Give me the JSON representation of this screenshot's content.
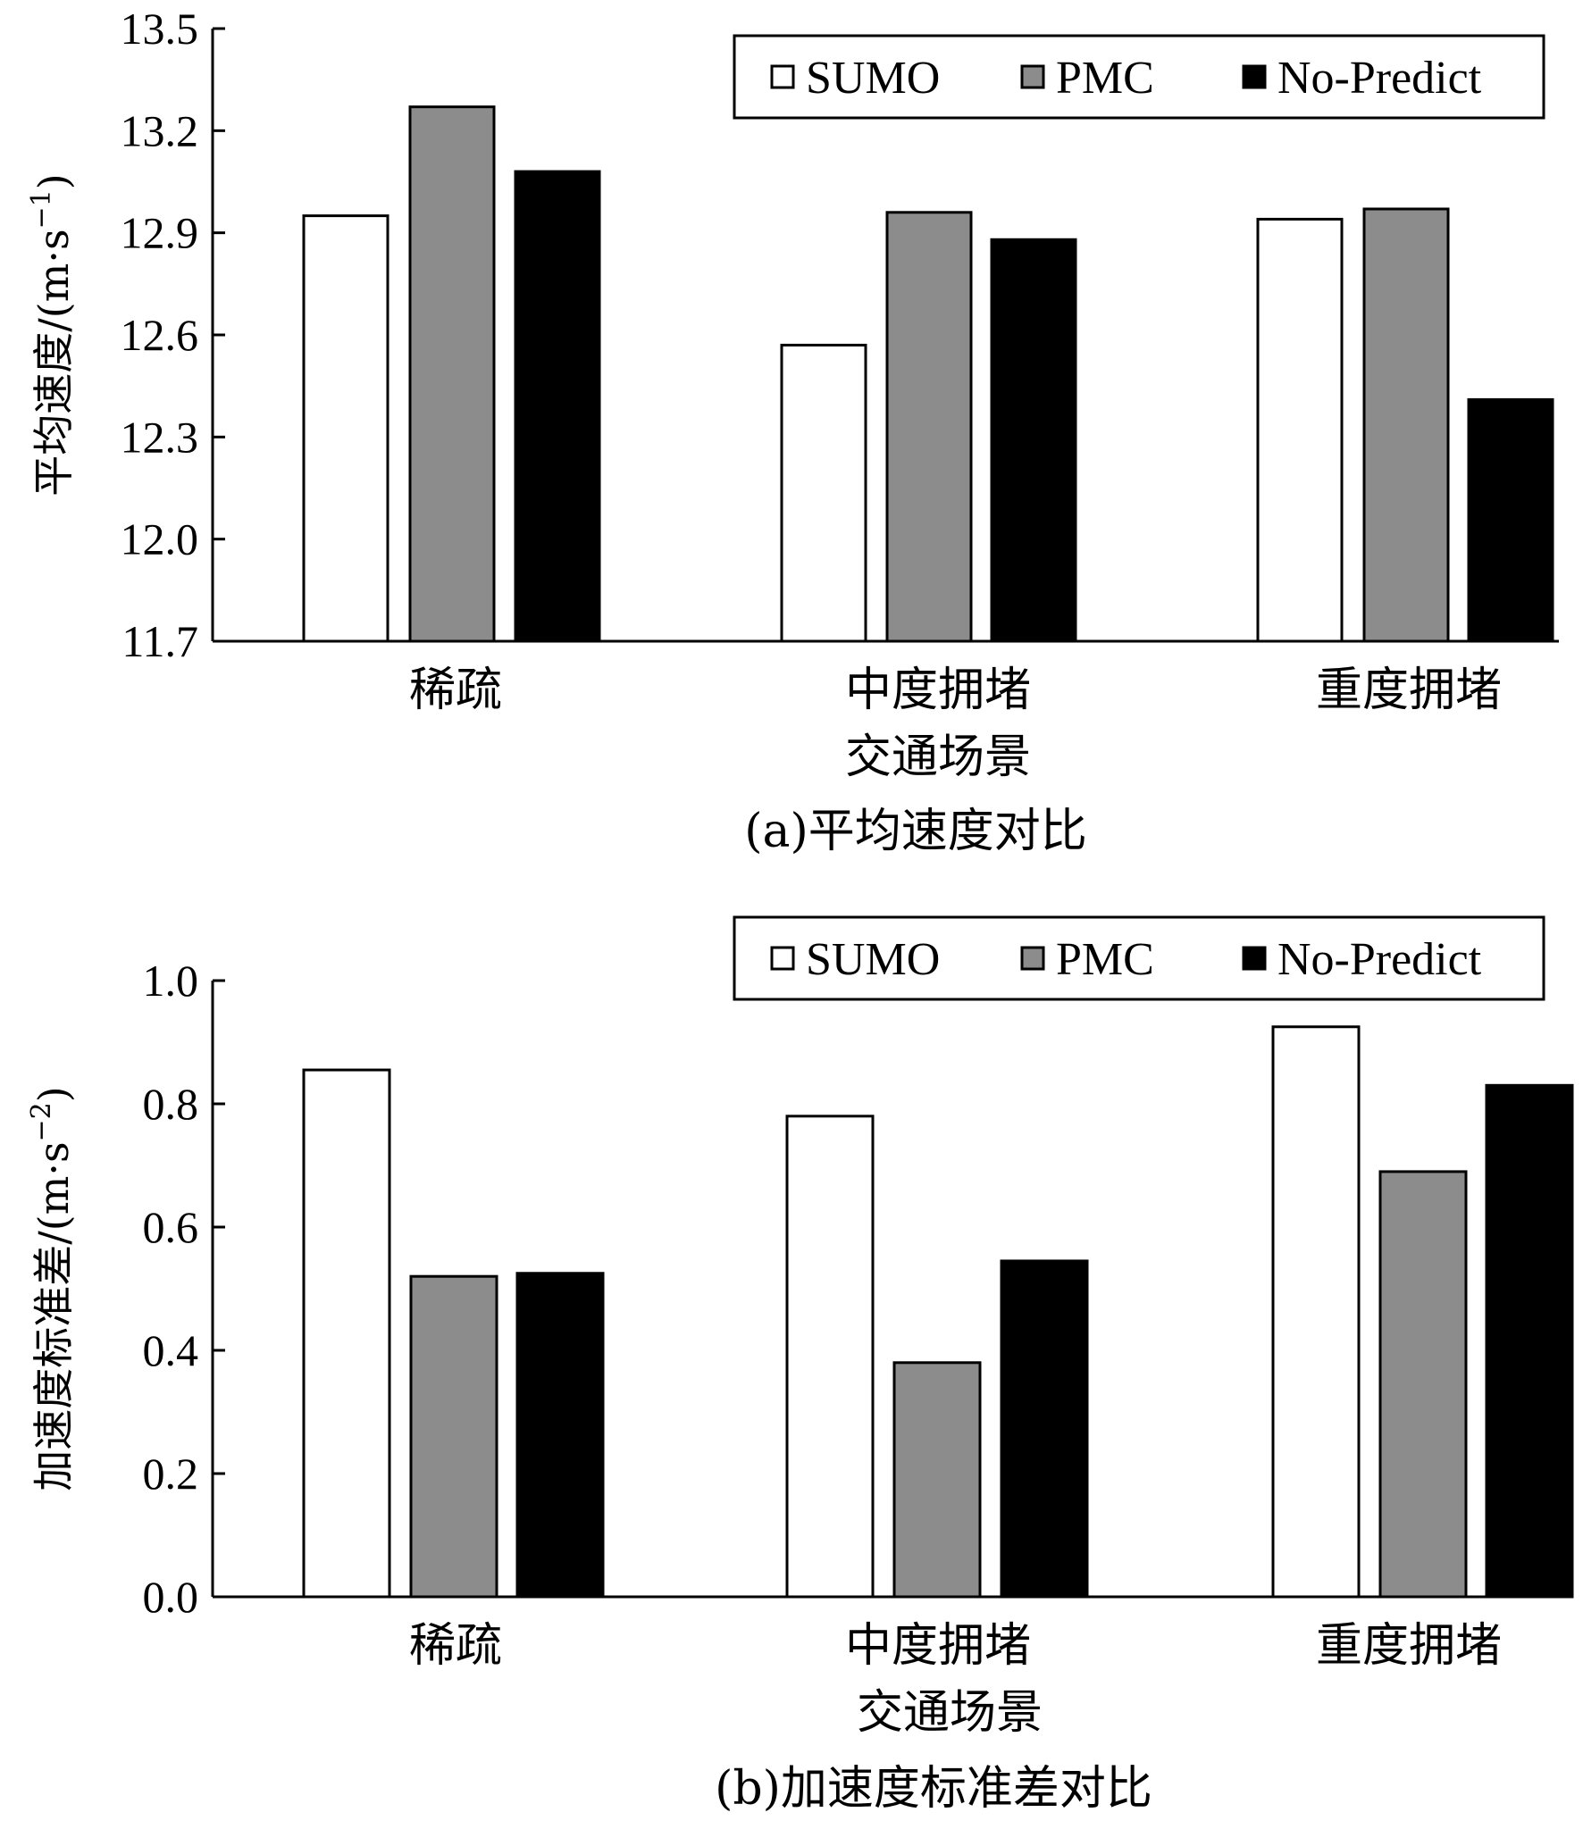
{
  "colors": {
    "SUMO": "#ffffff",
    "PMC": "#8c8c8c",
    "No-Predict": "#000000",
    "axis": "#000000"
  },
  "chart_data": [
    {
      "type": "bar",
      "title": "(a)平均速度对比",
      "xlabel": "交通场景",
      "ylabel": "平均速度/(m·s",
      "ylabel_sup": "−1",
      "ylabel_close": ")",
      "ylim": [
        11.7,
        13.5
      ],
      "yticks": [
        "11.7",
        "12.0",
        "12.3",
        "12.6",
        "12.9",
        "13.2",
        "13.5"
      ],
      "categories": [
        "稀疏",
        "中度拥堵",
        "重度拥堵"
      ],
      "legend_position": "top-right",
      "grid": false,
      "series": [
        {
          "name": "SUMO",
          "values": [
            12.95,
            12.57,
            12.94
          ]
        },
        {
          "name": "PMC",
          "values": [
            13.27,
            12.96,
            12.97
          ]
        },
        {
          "name": "No-Predict",
          "values": [
            13.08,
            12.88,
            12.41
          ]
        }
      ]
    },
    {
      "type": "bar",
      "title": "(b)加速度标准差对比",
      "xlabel": "交通场景",
      "ylabel": "加速度标准差/(m·s",
      "ylabel_sup": "−2",
      "ylabel_close": ")",
      "ylim": [
        0.0,
        1.0
      ],
      "yticks": [
        "0.0",
        "0.2",
        "0.4",
        "0.6",
        "0.8",
        "1.0"
      ],
      "categories": [
        "稀疏",
        "中度拥堵",
        "重度拥堵"
      ],
      "legend_position": "top-right",
      "grid": false,
      "series": [
        {
          "name": "SUMO",
          "values": [
            0.855,
            0.78,
            0.925
          ]
        },
        {
          "name": "PMC",
          "values": [
            0.52,
            0.38,
            0.69
          ]
        },
        {
          "name": "No-Predict",
          "values": [
            0.525,
            0.545,
            0.83
          ]
        }
      ]
    }
  ]
}
